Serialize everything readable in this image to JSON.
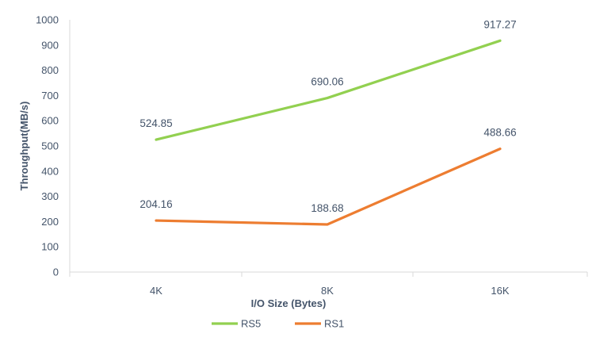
{
  "chart_data": {
    "type": "line",
    "categories": [
      "4K",
      "8K",
      "16K"
    ],
    "series": [
      {
        "name": "RS5",
        "values": [
          524.85,
          690.06,
          917.27
        ],
        "labels": [
          "524.85",
          "690.06",
          "917.27"
        ],
        "color": "#92d050"
      },
      {
        "name": "RS1",
        "values": [
          204.16,
          188.68,
          488.66
        ],
        "labels": [
          "204.16",
          "188.68",
          "488.66"
        ],
        "color": "#ed7d31"
      }
    ],
    "xlabel": "I/O Size (Bytes)",
    "ylabel": "Throughput(MB/s)",
    "ylim": [
      0,
      1000
    ],
    "yticks": [
      "0",
      "100",
      "200",
      "300",
      "400",
      "500",
      "600",
      "700",
      "800",
      "900",
      "1000"
    ],
    "grid": false,
    "legend_position": "bottom",
    "axis_color": "#d9d9d9",
    "text_color": "#44546a"
  }
}
